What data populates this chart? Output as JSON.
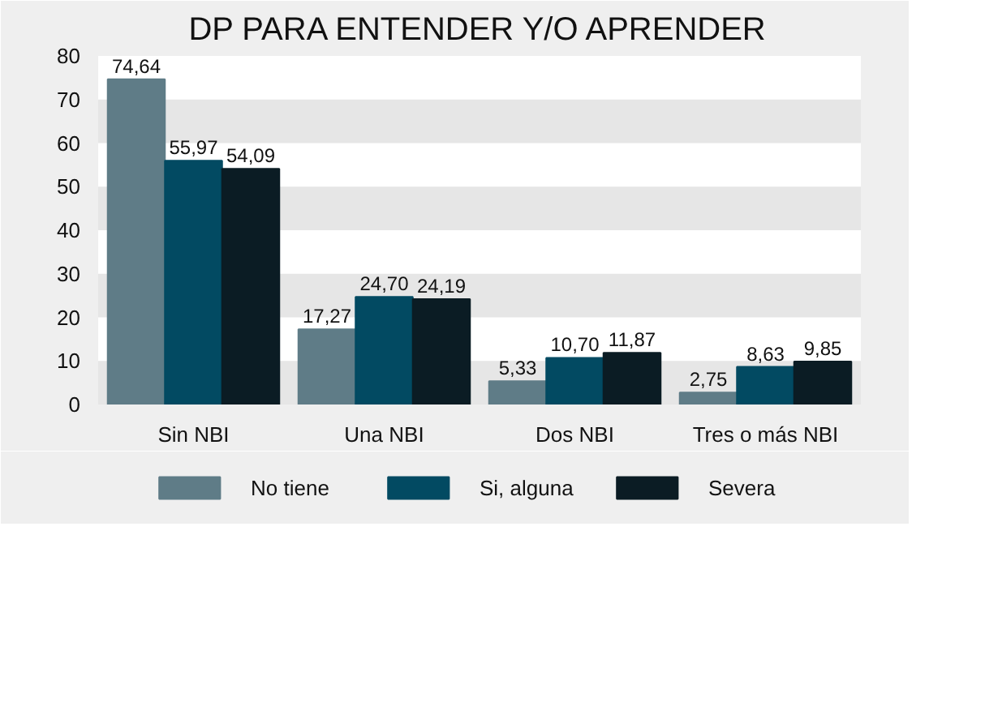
{
  "chart_data": {
    "type": "bar",
    "title": "DP PARA ENTENDER Y/O APRENDER",
    "categories": [
      "Sin NBI",
      "Una NBI",
      "Dos NBI",
      "Tres o más NBI"
    ],
    "series": [
      {
        "name": "No tiene",
        "color": "#5f7c87",
        "values": [
          74.64,
          17.27,
          5.33,
          2.75
        ],
        "value_labels": [
          "74,64",
          "17,27",
          "5,33",
          "2,75"
        ]
      },
      {
        "name": "Si, alguna",
        "color": "#024a62",
        "values": [
          55.97,
          24.7,
          10.7,
          8.63
        ],
        "value_labels": [
          "55,97",
          "24,70",
          "10,70",
          "8,63"
        ]
      },
      {
        "name": "Severa",
        "color": "#0b1c24",
        "values": [
          54.09,
          24.19,
          11.87,
          9.85
        ],
        "value_labels": [
          "54,09",
          "24,19",
          "11,87",
          "9,85"
        ]
      }
    ],
    "ylim": [
      0,
      80
    ],
    "yticks": [
      0,
      10,
      20,
      30,
      40,
      50,
      60,
      70,
      80
    ],
    "legend": "bottom",
    "bands": [
      {
        "axis": "y",
        "from": 0,
        "to": 10,
        "color": "#e6e6e6"
      },
      {
        "axis": "y",
        "from": 20,
        "to": 30,
        "color": "#e6e6e6"
      },
      {
        "axis": "y",
        "from": 40,
        "to": 50,
        "color": "#e6e6e6"
      },
      {
        "axis": "y",
        "from": 60,
        "to": 70,
        "color": "#e6e6e6"
      }
    ]
  }
}
